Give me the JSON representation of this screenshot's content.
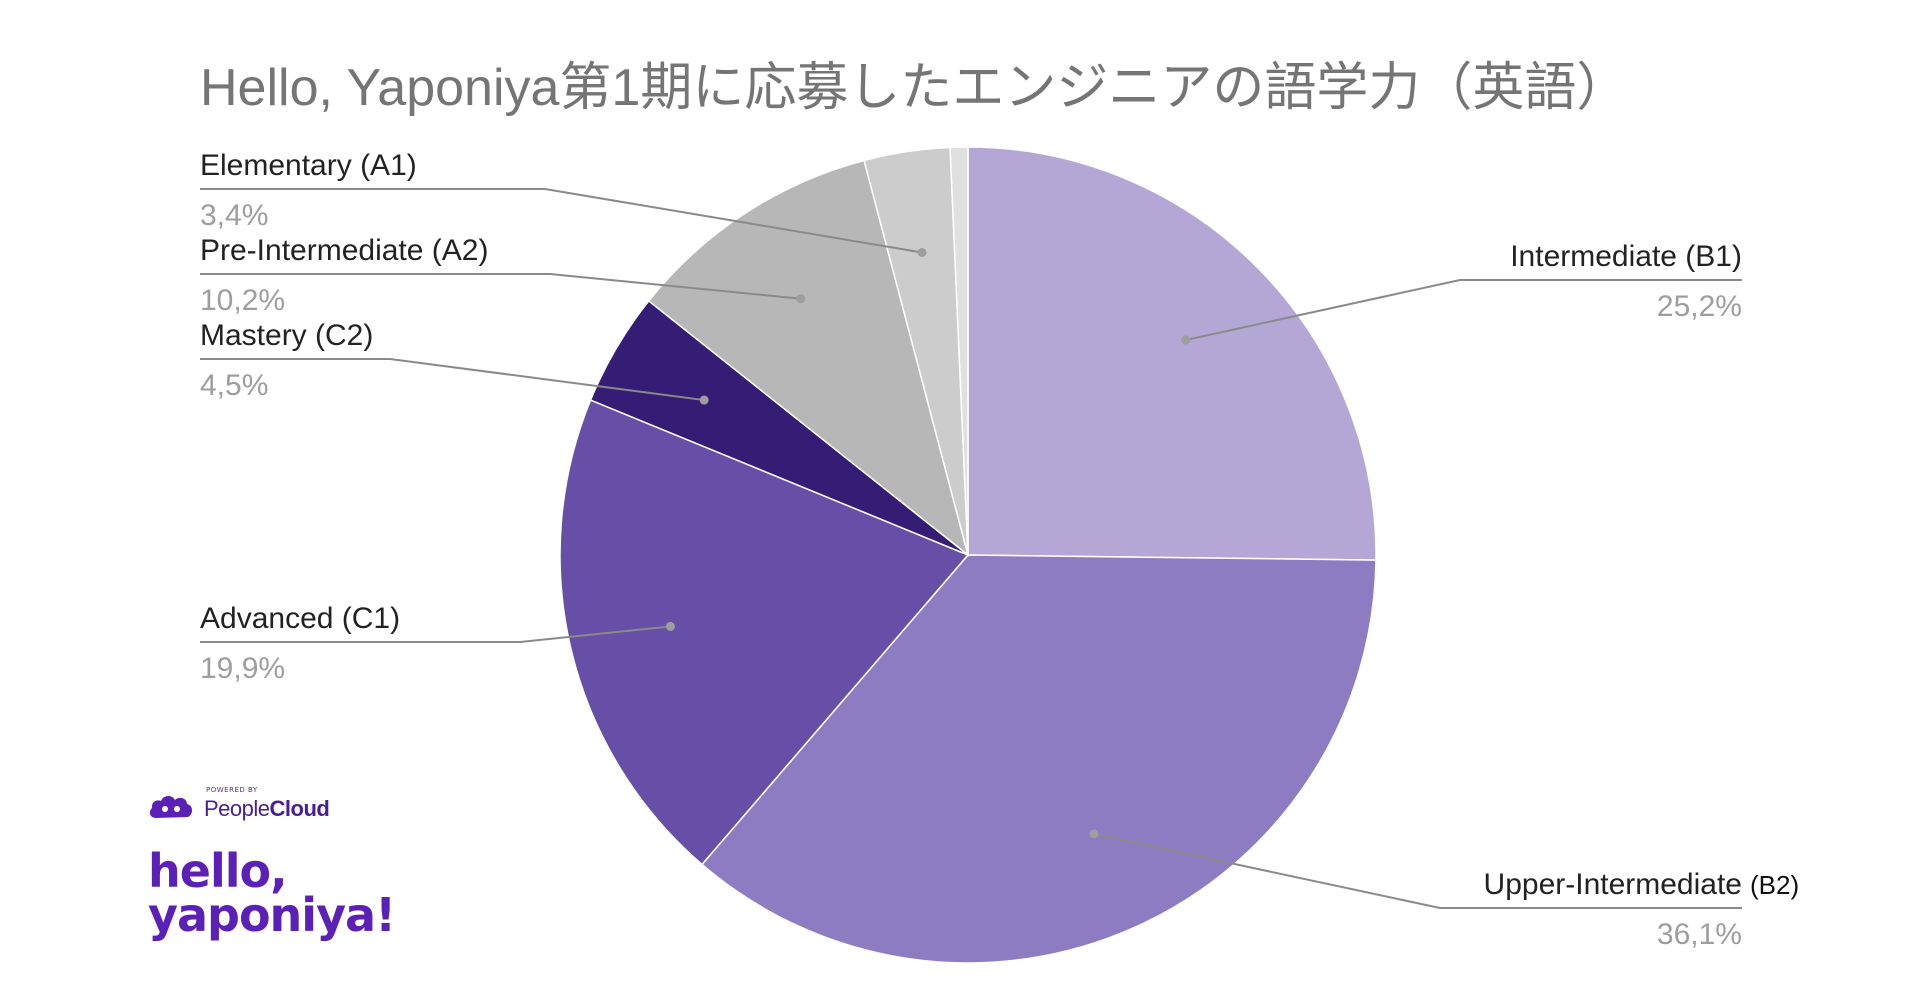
{
  "chart_data": {
    "type": "pie",
    "title": "Hello, Yaponiya第1期に応募したエンジニアの語学力（英語）",
    "slices": [
      {
        "label": "Intermediate (B1)",
        "value": 25.2,
        "percent_text": "25,2%",
        "color": "#b4a7d6"
      },
      {
        "label": "Upper-Intermediate",
        "label_suffix": "(B2)",
        "value": 36.1,
        "percent_text": "36,1%",
        "color": "#8e7cc3"
      },
      {
        "label": "Advanced (C1)",
        "value": 19.9,
        "percent_text": "19,9%",
        "color": "#674ea7"
      },
      {
        "label": "Mastery (C2)",
        "value": 4.5,
        "percent_text": "4,5%",
        "color": "#351c75"
      },
      {
        "label": "Pre-Intermediate (A2)",
        "value": 10.2,
        "percent_text": "10,2%",
        "color": "#b7b7b7"
      },
      {
        "label": "Elementary (A1)",
        "value": 3.4,
        "percent_text": "3,4%",
        "color": "#cccccc"
      },
      {
        "label": "",
        "value": 0.7,
        "percent_text": "",
        "color": "#e0e0e0"
      }
    ],
    "legend": "leader-labels"
  },
  "branding": {
    "powered_by": "POWERED BY",
    "people": "People",
    "cloud": "Cloud",
    "hello_line1": "hello,",
    "hello_line2": "yaponiya!"
  }
}
